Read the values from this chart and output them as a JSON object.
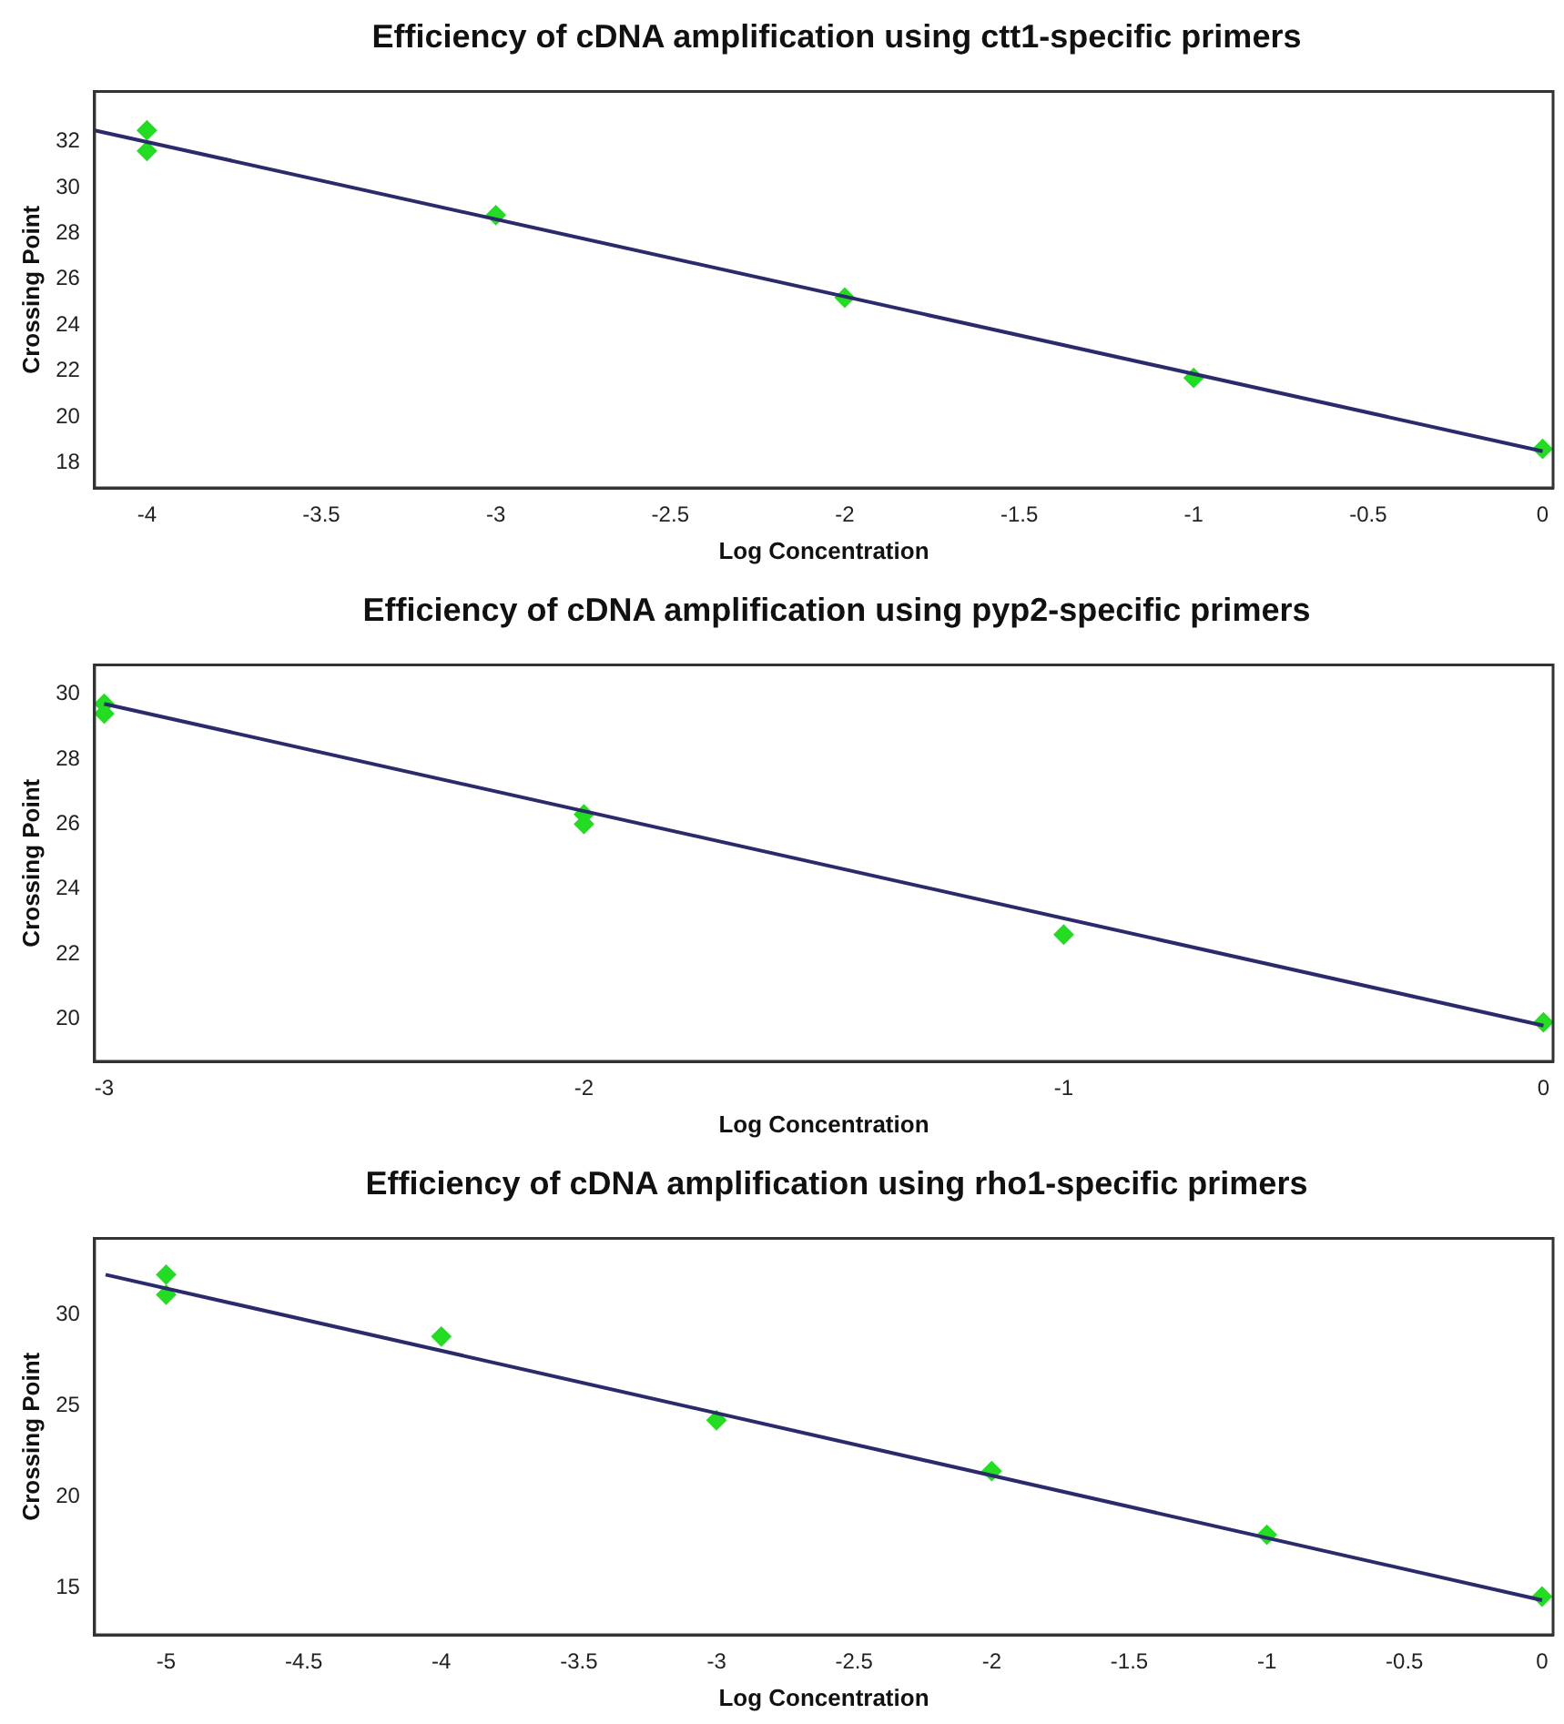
{
  "chart_data": [
    {
      "type": "scatter",
      "title": "Efficiency of cDNA amplification using ctt1-specific primers",
      "xlabel": "Log Concentration",
      "ylabel": "Crossing Point",
      "xlim": [
        -4.15,
        0.03
      ],
      "ylim": [
        16.9,
        34.2
      ],
      "xticks": [
        -4,
        -3.5,
        -3,
        -2.5,
        -2,
        -1.5,
        -1,
        -0.5,
        0
      ],
      "yticks": [
        18,
        20,
        22,
        24,
        26,
        28,
        30,
        32
      ],
      "series": [
        {
          "type": "line",
          "marker": "none",
          "color": "#2b2b6b",
          "x": [
            -4.15,
            0
          ],
          "values": [
            32.5,
            18.5
          ]
        },
        {
          "type": "scatter",
          "marker": "diamond",
          "color": "#22dd22",
          "x": [
            -4,
            -4,
            -3,
            -2,
            -1,
            0
          ],
          "values": [
            32.5,
            31.6,
            28.8,
            25.2,
            21.7,
            18.6
          ]
        }
      ]
    },
    {
      "type": "scatter",
      "title": "Efficiency of cDNA amplification using pyp2-specific primers",
      "xlabel": "Log Concentration",
      "ylabel": "Crossing Point",
      "xlim": [
        -3.02,
        0.02
      ],
      "ylim": [
        18.7,
        30.9
      ],
      "xticks": [
        -3,
        -2,
        -1,
        0
      ],
      "yticks": [
        20,
        22,
        24,
        26,
        28,
        30
      ],
      "series": [
        {
          "type": "line",
          "marker": "none",
          "color": "#2b2b6b",
          "x": [
            -3,
            0
          ],
          "values": [
            29.7,
            19.8
          ]
        },
        {
          "type": "scatter",
          "marker": "diamond",
          "color": "#22dd22",
          "x": [
            -3,
            -3,
            -2,
            -2,
            -1,
            0
          ],
          "values": [
            29.7,
            29.4,
            26.3,
            26.0,
            22.6,
            19.9
          ]
        }
      ]
    },
    {
      "type": "scatter",
      "title": "Efficiency of cDNA amplification using rho1-specific primers",
      "xlabel": "Log Concentration",
      "ylabel": "Crossing Point",
      "xlim": [
        -5.26,
        0.04
      ],
      "ylim": [
        12.4,
        34.2
      ],
      "xticks": [
        -5,
        -4.5,
        -4,
        -3.5,
        -3,
        -2.5,
        -2,
        -1.5,
        -1,
        -0.5,
        0
      ],
      "yticks": [
        15,
        20,
        25,
        30
      ],
      "series": [
        {
          "type": "line",
          "marker": "none",
          "color": "#2b2b6b",
          "x": [
            -5.22,
            0
          ],
          "values": [
            32.2,
            14.3
          ]
        },
        {
          "type": "scatter",
          "marker": "diamond",
          "color": "#22dd22",
          "x": [
            -5,
            -5,
            -4,
            -3,
            -2,
            -1,
            0
          ],
          "values": [
            32.2,
            31.1,
            28.8,
            24.2,
            21.4,
            17.9,
            14.5
          ]
        }
      ]
    }
  ]
}
